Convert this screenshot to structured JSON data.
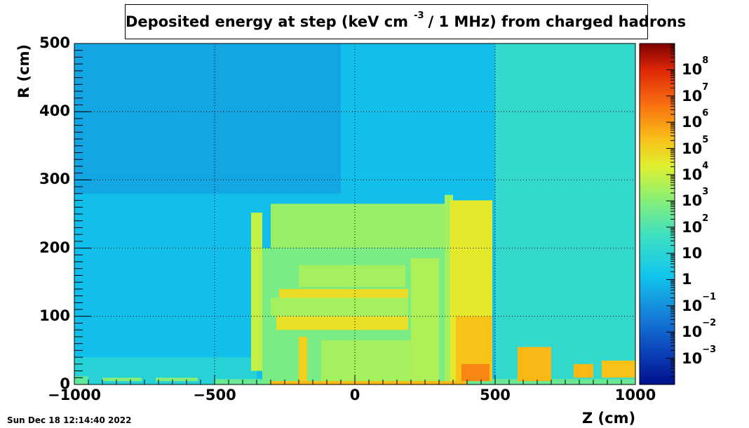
{
  "chart_data": {
    "type": "heatmap",
    "title": {
      "main": "Deposited energy at step (keV cm",
      "exponent": "-3",
      "rest": "/ 1 MHz)  from   charged hadrons"
    },
    "xlabel": "Z (cm)",
    "ylabel": "R (cm)",
    "xlim": [
      -1000,
      1000
    ],
    "ylim": [
      0,
      500
    ],
    "x_ticks": [
      -1000,
      -500,
      0,
      500,
      1000
    ],
    "x_tick_labels": [
      "−1000",
      "−500",
      "0",
      "500",
      "1000"
    ],
    "y_ticks": [
      0,
      100,
      200,
      300,
      400,
      500
    ],
    "y_tick_labels": [
      "0",
      "100",
      "200",
      "300",
      "400",
      "500"
    ],
    "grid": true,
    "colorscale": "log",
    "colorbar_range": [
      0.0001,
      1000000000
    ],
    "colorbar_ticks": [
      {
        "value": 0.001,
        "base": "10",
        "exp": "−3"
      },
      {
        "value": 0.01,
        "base": "10",
        "exp": "−2"
      },
      {
        "value": 0.1,
        "base": "10",
        "exp": "−1"
      },
      {
        "value": 1,
        "base": "1",
        "exp": ""
      },
      {
        "value": 10,
        "base": "10",
        "exp": ""
      },
      {
        "value": 100,
        "base": "10",
        "exp": "2"
      },
      {
        "value": 1000,
        "base": "10",
        "exp": "3"
      },
      {
        "value": 10000,
        "base": "10",
        "exp": "4"
      },
      {
        "value": 100000,
        "base": "10",
        "exp": "5"
      },
      {
        "value": 1000000,
        "base": "10",
        "exp": "6"
      },
      {
        "value": 10000000,
        "base": "10",
        "exp": "7"
      },
      {
        "value": 100000000,
        "base": "10",
        "exp": "8"
      }
    ],
    "regions": [
      {
        "z": [
          -1000,
          1000
        ],
        "r": [
          0,
          500
        ],
        "value": 1
      },
      {
        "z": [
          -1000,
          -50
        ],
        "r": [
          280,
          500
        ],
        "value": 0.3
      },
      {
        "z": [
          500,
          1000
        ],
        "r": [
          0,
          500
        ],
        "value": 20
      },
      {
        "z": [
          -1000,
          -350
        ],
        "r": [
          0,
          40
        ],
        "value": 8
      },
      {
        "z": [
          -1000,
          -950
        ],
        "r": [
          0,
          12
        ],
        "value": 200
      },
      {
        "z": [
          -900,
          -760
        ],
        "r": [
          5,
          10
        ],
        "value": 1000
      },
      {
        "z": [
          -710,
          -560
        ],
        "r": [
          5,
          10
        ],
        "value": 1000
      },
      {
        "z": [
          -500,
          1000
        ],
        "r": [
          0,
          8
        ],
        "value": 300
      },
      {
        "z": [
          -300,
          320
        ],
        "r": [
          200,
          265
        ],
        "value": 2000
      },
      {
        "z": [
          -370,
          -330
        ],
        "r": [
          20,
          252
        ],
        "value": 8000
      },
      {
        "z": [
          -330,
          320
        ],
        "r": [
          0,
          200
        ],
        "value": 600
      },
      {
        "z": [
          -200,
          180
        ],
        "r": [
          143,
          175
        ],
        "value": 3000
      },
      {
        "z": [
          -270,
          190
        ],
        "r": [
          127,
          140
        ],
        "value": 60000
      },
      {
        "z": [
          -300,
          190
        ],
        "r": [
          100,
          127
        ],
        "value": 3000
      },
      {
        "z": [
          -280,
          190
        ],
        "r": [
          80,
          100
        ],
        "value": 50000
      },
      {
        "z": [
          -200,
          -170
        ],
        "r": [
          5,
          70
        ],
        "value": 100000
      },
      {
        "z": [
          -120,
          200
        ],
        "r": [
          5,
          65
        ],
        "value": 3000
      },
      {
        "z": [
          200,
          300
        ],
        "r": [
          5,
          185
        ],
        "value": 4000
      },
      {
        "z": [
          320,
          350
        ],
        "r": [
          5,
          278
        ],
        "value": 3000
      },
      {
        "z": [
          340,
          490
        ],
        "r": [
          5,
          270
        ],
        "value": 30000
      },
      {
        "z": [
          360,
          490
        ],
        "r": [
          5,
          100
        ],
        "value": 200000
      },
      {
        "z": [
          380,
          480
        ],
        "r": [
          5,
          30
        ],
        "value": 2000000
      },
      {
        "z": [
          580,
          700
        ],
        "r": [
          5,
          55
        ],
        "value": 300000
      },
      {
        "z": [
          780,
          850
        ],
        "r": [
          10,
          30
        ],
        "value": 300000
      },
      {
        "z": [
          880,
          1000
        ],
        "r": [
          10,
          35
        ],
        "value": 200000
      },
      {
        "z": [
          -300,
          400
        ],
        "r": [
          0,
          5
        ],
        "value": 300000
      }
    ]
  },
  "timestamp": "Sun Dec 18 12:14:40 2022"
}
